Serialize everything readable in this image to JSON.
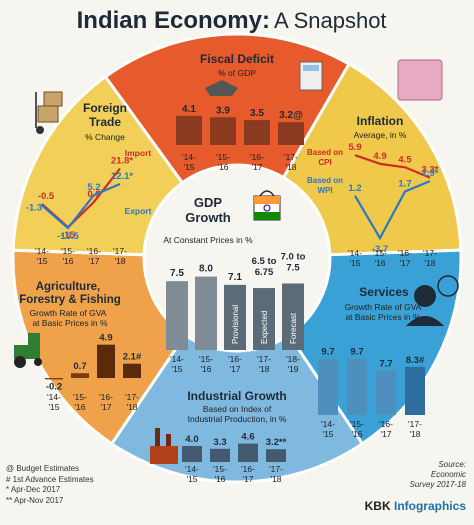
{
  "title": {
    "bold": "Indian Economy:",
    "light": "A Snapshot"
  },
  "footnotes": [
    "@ Budget Estimates",
    "# 1st Advance Estimates",
    "* Apr-Dec 2017",
    "** Apr-Nov 2017"
  ],
  "source": [
    "Source:",
    "Economic",
    "Survey 2017-18"
  ],
  "brand": {
    "a": "KBK ",
    "b": "Infographics"
  },
  "colors": {
    "fiscal": "#e65a2b",
    "inflation": "#f0c84a",
    "services": "#3aa1d6",
    "industrial": "#7fb9e0",
    "agri": "#f0a24a",
    "foreign": "#f2cf58",
    "gdp_bar": "#7f8b95",
    "gdp_bar_alt": "#5b6b78",
    "red": "#d22a2a",
    "blue": "#2b78c6",
    "dark": "#1d2a38"
  },
  "chart_data": [
    {
      "id": "gdp",
      "type": "bar",
      "title": "GDP Growth",
      "subtitle": "At Constant Prices in %",
      "categories": [
        "'14-'15",
        "'15-'16",
        "'16-'17",
        "'17-'18",
        "'18-'19"
      ],
      "values": [
        7.5,
        8.0,
        7.1,
        6.75,
        7.25
      ],
      "value_labels": [
        "7.5",
        "8.0",
        "7.1",
        "6.5 to 6.75",
        "7.0 to 7.5"
      ],
      "bar_notes": [
        "",
        "",
        "Provisional",
        "Expected",
        "Forecast"
      ],
      "ylim": [
        0,
        8.5
      ]
    },
    {
      "id": "fiscal",
      "type": "bar",
      "title": "Fiscal Deficit",
      "subtitle": "% of GDP",
      "categories": [
        "'14-'15",
        "'15-'16",
        "'16-'17",
        "'17-'18"
      ],
      "values": [
        4.1,
        3.9,
        3.5,
        3.2
      ],
      "value_labels": [
        "4.1",
        "3.9",
        "3.5",
        "3.2@"
      ],
      "ylim": [
        0,
        4.5
      ]
    },
    {
      "id": "inflation",
      "type": "line",
      "title": "Inflation",
      "subtitle": "Average, in %",
      "categories": [
        "'14-'15",
        "'15-'16",
        "'16-'17",
        "'17-'18"
      ],
      "series": [
        {
          "name": "Based on CPI",
          "values": [
            5.9,
            4.9,
            4.5,
            3.3
          ],
          "labels": [
            "5.9",
            "4.9",
            "4.5",
            "3.3*"
          ]
        },
        {
          "name": "Based on WPI",
          "values": [
            1.2,
            -3.7,
            1.7,
            2.9
          ],
          "labels": [
            "1.2",
            "-3.7",
            "1.7",
            "2.9*"
          ]
        }
      ],
      "ylim": [
        -4.5,
        6.5
      ]
    },
    {
      "id": "services",
      "type": "bar",
      "title": "Services",
      "subtitle": "Growth Rate of GVA at Basic Prices in %",
      "categories": [
        "'14-'15",
        "'15-'16",
        "'16-'17",
        "'17-'18"
      ],
      "values": [
        9.7,
        9.7,
        7.7,
        8.3
      ],
      "value_labels": [
        "9.7",
        "9.7",
        "7.7",
        "8.3#"
      ],
      "ylim": [
        0,
        10
      ]
    },
    {
      "id": "industrial",
      "type": "bar",
      "title": "Industrial Growth",
      "subtitle": "Based on Index of Industrial Production, in %",
      "categories": [
        "'14-'15",
        "'15-'16",
        "'16-'17",
        "'17-'18"
      ],
      "values": [
        4.0,
        3.3,
        4.6,
        3.2
      ],
      "value_labels": [
        "4.0",
        "3.3",
        "4.6",
        "3.2**"
      ],
      "ylim": [
        0,
        5
      ]
    },
    {
      "id": "agri",
      "type": "bar",
      "title": "Agriculture, Forestry & Fishing",
      "subtitle": "Growth Rate of GVA at Basic Prices in %",
      "categories": [
        "'14-'15",
        "'15-'16",
        "'16-'17",
        "'17-'18"
      ],
      "values": [
        -0.2,
        0.7,
        4.9,
        2.1
      ],
      "value_labels": [
        "-0.2",
        "0.7",
        "4.9",
        "2.1#"
      ],
      "ylim": [
        -0.5,
        5
      ]
    },
    {
      "id": "foreign",
      "type": "line",
      "title": "Foreign Trade",
      "subtitle": "% Change",
      "categories": [
        "'14-'15",
        "'15-'16",
        "'16-'17",
        "'17-'18"
      ],
      "series": [
        {
          "name": "Import",
          "values": [
            -0.5,
            -15,
            0.9,
            21.8
          ],
          "labels": [
            "-0.5",
            "-15",
            "0.9",
            "21.8*"
          ]
        },
        {
          "name": "Export",
          "values": [
            -1.3,
            -15.5,
            5.2,
            12.1
          ],
          "labels": [
            "-1.3",
            "-15.5",
            "5.2",
            "12.1*"
          ]
        }
      ],
      "ylim": [
        -18,
        24
      ]
    }
  ]
}
